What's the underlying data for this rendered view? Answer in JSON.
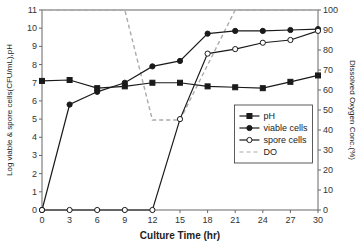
{
  "chart_data": {
    "type": "line",
    "xlabel": "Culture Time (hr)",
    "ylabel": "Log viable & spore cells(CFU/mL),pH",
    "y2label": "Dissolved Oxygen Conc.(%)",
    "x": [
      0,
      3,
      6,
      9,
      12,
      15,
      18,
      21,
      24,
      27,
      30
    ],
    "series": [
      {
        "name": "pH",
        "color": "#1a1a1a",
        "marker": "square",
        "line_style": "solid",
        "values": [
          7.1,
          7.15,
          6.7,
          6.8,
          7.0,
          7.0,
          6.8,
          6.75,
          6.7,
          7.05,
          7.4
        ]
      },
      {
        "name": "viable cells",
        "color": "#1a1a1a",
        "marker": "circle",
        "line_style": "solid",
        "values": [
          0.0,
          5.8,
          6.5,
          7.0,
          7.9,
          8.2,
          9.7,
          9.85,
          9.85,
          9.9,
          9.95
        ]
      },
      {
        "name": "spore cells",
        "color": "#1a1a1a",
        "marker": "open-circle",
        "line_style": "solid",
        "values": [
          0,
          0,
          0,
          0,
          0,
          5.0,
          8.6,
          8.85,
          9.2,
          9.35,
          9.85
        ]
      },
      {
        "name": "DO",
        "color": "#aaaaaa",
        "marker": "none",
        "line_style": "dashed",
        "axis": "y2",
        "x": [
          0,
          9,
          12,
          15,
          21,
          30
        ],
        "values": [
          100,
          100,
          45,
          45,
          100,
          100
        ]
      }
    ],
    "xlim": [
      0,
      30
    ],
    "xticks": [
      0,
      3,
      6,
      9,
      12,
      15,
      18,
      21,
      24,
      27,
      30
    ],
    "ylim": [
      0,
      11
    ],
    "yticks": [
      0,
      1,
      2,
      3,
      4,
      5,
      6,
      7,
      8,
      9,
      10,
      11
    ],
    "y2lim": [
      0,
      100
    ],
    "y2ticks": [
      0,
      10,
      20,
      30,
      40,
      50,
      60,
      70,
      80,
      90,
      100
    ],
    "legend": "right",
    "grid": false
  }
}
